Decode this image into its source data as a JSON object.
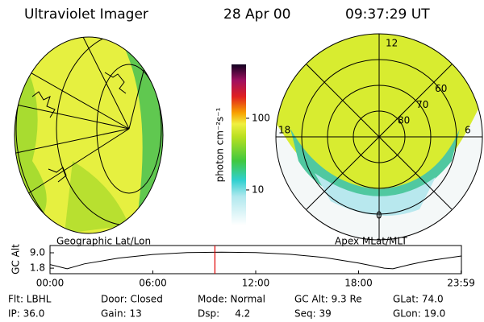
{
  "header": {
    "instrument": "Ultraviolet Imager",
    "date": "28 Apr 00",
    "time": "09:37:29 UT"
  },
  "left_image": {
    "caption": "Geographic Lat/Lon"
  },
  "right_image": {
    "caption": "Apex MLat/MLT",
    "lat_rings": [
      80,
      70,
      60
    ],
    "outer_lat": 50,
    "mlt_labels": {
      "top": 12,
      "left": 18,
      "right": 6,
      "bottom": 0
    }
  },
  "colorbar": {
    "label": "photon cm⁻²s⁻¹",
    "log": true,
    "lim": [
      3.2,
      565
    ],
    "ticks": [
      100,
      10
    ]
  },
  "altitude_plot": {
    "ylabel": "GC Alt",
    "ylim": [
      -0.8,
      12.4
    ],
    "yticks": [
      {
        "value": 9,
        "label": "9.0"
      },
      1.8
    ],
    "xlim": [
      0,
      24
    ],
    "xticks": [
      {
        "value": 0,
        "label": "00:00"
      },
      {
        "value": 6,
        "label": "06:00"
      },
      {
        "value": 12,
        "label": "12:00"
      },
      {
        "value": 18,
        "label": "18:00"
      },
      {
        "value": 23.98,
        "label": "23:59"
      }
    ],
    "x": [
      0,
      1,
      2,
      4,
      6,
      8,
      10,
      12,
      14,
      16,
      18,
      19.5,
      20,
      21,
      22,
      24
    ],
    "values": [
      3.5,
      1.5,
      3.8,
      6.5,
      8.2,
      9.1,
      9.3,
      9.1,
      8.3,
      6.8,
      4.2,
      1.8,
      1.5,
      3.5,
      5.2,
      7.5
    ],
    "marker_x": 9.62,
    "marker_color": "#e00000"
  },
  "info": {
    "rows": [
      [
        "Flt: LBHL",
        "Door: Closed",
        "Mode: Normal",
        "GC Alt: 9.3 Re",
        "GLat: 74.0"
      ],
      [
        "IP: 36.0",
        "Gain: 13",
        "Dsp:     4.2",
        "Seq: 39",
        "GLon: 19.0"
      ]
    ]
  }
}
